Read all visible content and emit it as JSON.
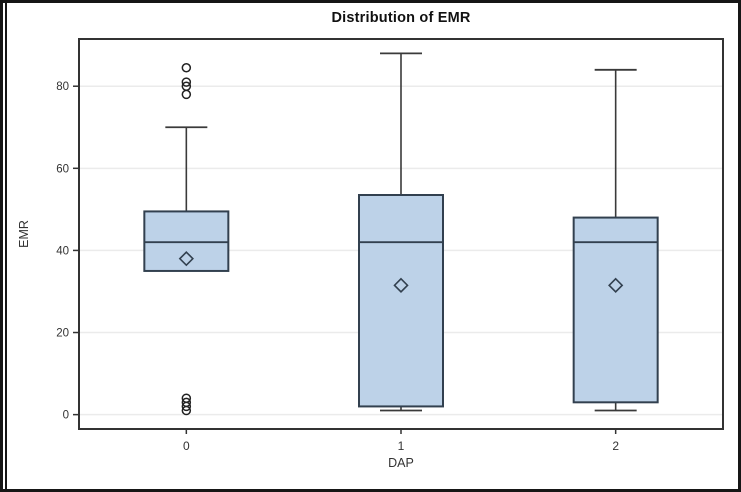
{
  "chart_data": {
    "type": "box",
    "title": "Distribution of EMR",
    "xlabel": "DAP",
    "ylabel": "EMR",
    "categories": [
      "0",
      "1",
      "2"
    ],
    "yticks": [
      0,
      20,
      40,
      60,
      80
    ],
    "ylim": [
      -3.5,
      91.5
    ],
    "grid": "horizontal gridlines at y ticks",
    "legend": "none",
    "colors": {
      "box_fill": "#bdd2e8",
      "box_border": "#32404f",
      "whisker": "#3a3a3a",
      "grid": "#ebebeb",
      "frame": "#333333",
      "tick_text": "#333333",
      "title_text": "#111111",
      "outlier": "#222222",
      "mean_marker": "#32404f"
    },
    "boxes": [
      {
        "category": "0",
        "whisker_low": 35,
        "q1": 35,
        "median": 42,
        "q3": 49.5,
        "whisker_high": 70,
        "mean": 38,
        "outliers": [
          1,
          2,
          3,
          4,
          78,
          80,
          81,
          84.5
        ]
      },
      {
        "category": "1",
        "whisker_low": 1,
        "q1": 2,
        "median": 42,
        "q3": 53.5,
        "whisker_high": 88,
        "mean": 31.5,
        "outliers": []
      },
      {
        "category": "2",
        "whisker_low": 1,
        "q1": 3,
        "median": 42,
        "q3": 48,
        "whisker_high": 84,
        "mean": 31.5,
        "outliers": []
      }
    ]
  }
}
